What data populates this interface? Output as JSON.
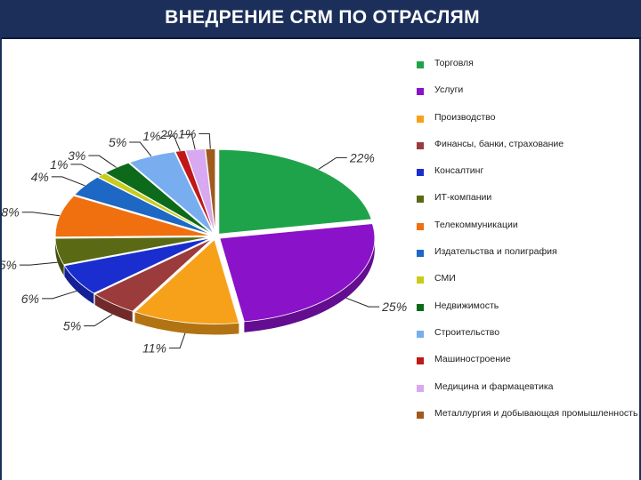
{
  "title": "ВНЕДРЕНИЕ CRM ПО ОТРАСЛЯМ",
  "chart_data": {
    "type": "pie",
    "title": "",
    "legend_position": "right",
    "categories": [
      "Торговля",
      "Услуги",
      "Производство",
      "Финансы, банки, страхование",
      "Консалтинг",
      "ИТ-компании",
      "Телекоммуникации",
      "Издательства и полиграфия",
      "СМИ",
      "Недвижимость",
      "Строительство",
      "Машиностроение",
      "Медицина и фармацевтика",
      "Металлургия и добывающая промышленность"
    ],
    "values": [
      22,
      25,
      11,
      5,
      6,
      5,
      8,
      4,
      1,
      3,
      5,
      1,
      2,
      1
    ],
    "labels": [
      "22%",
      "25%",
      "11%",
      "5%",
      "6%",
      "5%",
      "8%",
      "4%",
      "1%",
      "3%",
      "5%",
      "1%",
      "2%",
      "1%"
    ],
    "colors": [
      "#1fa34a",
      "#8a12c8",
      "#f7a11a",
      "#9c3b3b",
      "#1a2ecf",
      "#5a6a14",
      "#f07010",
      "#1c68c4",
      "#c8cc1a",
      "#0d6a1a",
      "#78aef0",
      "#c01818",
      "#d8a8f0",
      "#a05a1e"
    ]
  }
}
